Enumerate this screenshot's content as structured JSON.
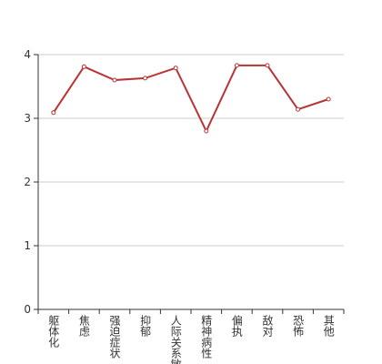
{
  "chart_data": {
    "type": "line",
    "categories": [
      "躯体化",
      "焦虑",
      "强迫症状",
      "抑郁",
      "人际关系敏感",
      "精神病性",
      "偏执",
      "敌对",
      "恐怖",
      "其他"
    ],
    "series": [
      {
        "color": "#b83434",
        "values": [
          3.09,
          3.81,
          3.6,
          3.63,
          3.79,
          2.8,
          3.83,
          3.83,
          3.14,
          3.3
        ]
      }
    ],
    "ylim": [
      0,
      4
    ],
    "yticks": [
      0,
      1,
      2,
      3,
      4
    ],
    "grid": true
  }
}
